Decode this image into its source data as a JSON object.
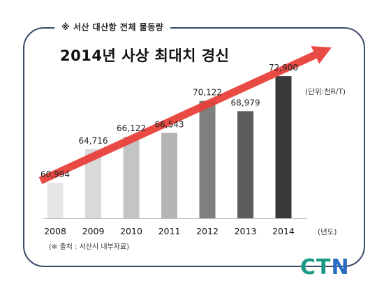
{
  "header_tag": "※ 서산 대산항 전체 물동량",
  "headline": "2014년 사상 최대치 경신",
  "unit_label": "(단위:천R/T)",
  "x_unit_label": "(년도)",
  "source_note": "(※ 출처 : 서산시 내부자료)",
  "logo": {
    "part1": "CT",
    "part2": "N"
  },
  "colors": {
    "arrow": "#e8403a",
    "bars": [
      "#e6e6e6",
      "#d9d9d9",
      "#c4c4c4",
      "#b4b4b4",
      "#7f7f7f",
      "#5c5c5c",
      "#3a3a3a"
    ],
    "frame": "#3b4a6b",
    "logo_teal": "#1a9a86",
    "logo_blue": "#2a6cc0"
  },
  "chart_data": {
    "type": "bar",
    "categories": [
      "2008",
      "2009",
      "2010",
      "2011",
      "2012",
      "2013",
      "2014"
    ],
    "values": [
      60994,
      64716,
      66122,
      66543,
      70122,
      68979,
      72900
    ],
    "labels": [
      "60,994",
      "64,716",
      "66,122",
      "66,543",
      "70,122",
      "68,979",
      "72,900"
    ],
    "title": "2014년 사상 최대치 경신",
    "ylabel": "(단위:천R/T)",
    "xlabel": "(년도)",
    "ylim": [
      57000,
      74000
    ],
    "grid": false,
    "legend": "none"
  }
}
